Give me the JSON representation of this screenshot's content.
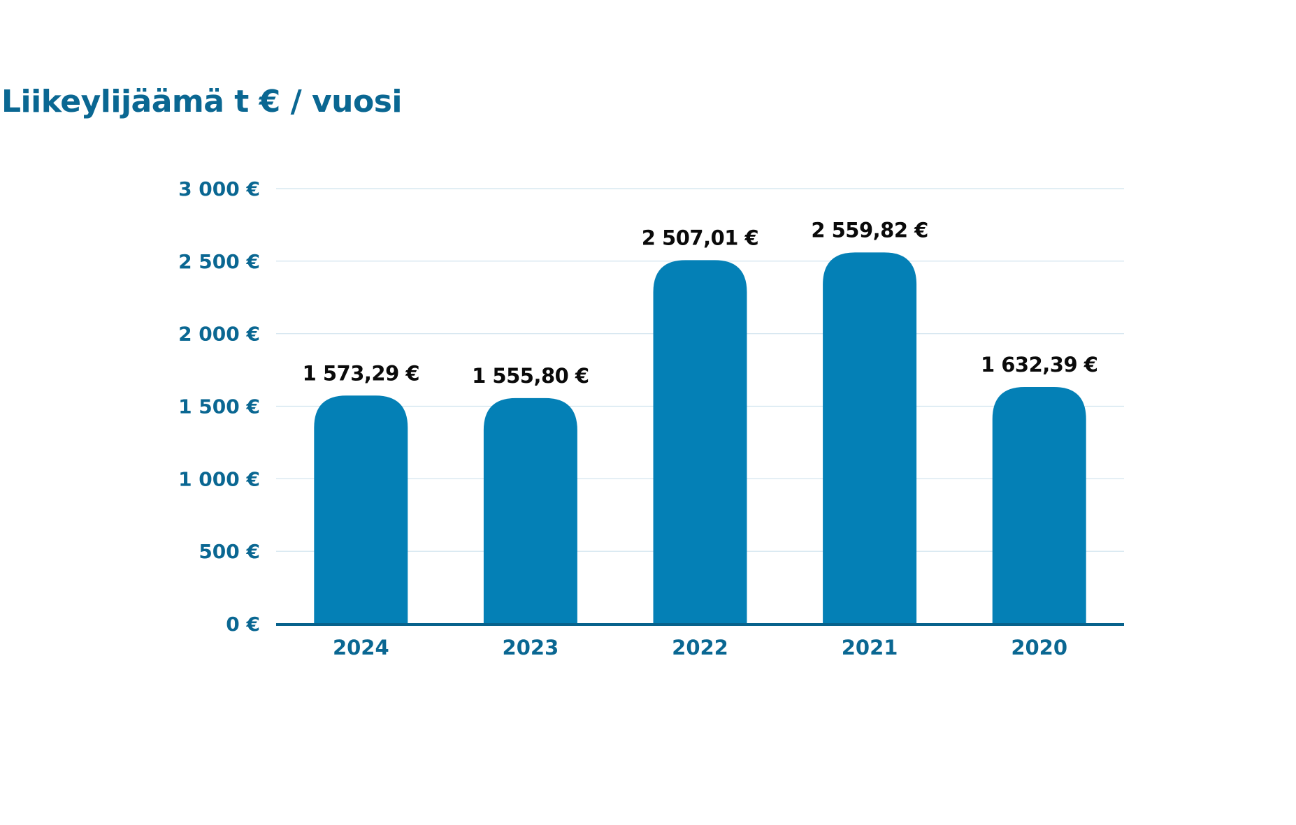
{
  "chart_data": {
    "type": "bar",
    "title": "Liikeylijäämä t € / vuosi",
    "xlabel": "",
    "ylabel": "",
    "categories": [
      "2024",
      "2023",
      "2022",
      "2021",
      "2020"
    ],
    "values": [
      1573.29,
      1555.8,
      2507.01,
      2559.82,
      1632.39
    ],
    "value_labels": [
      "1 573,29 €",
      "1 555,80 €",
      "2 507,01 €",
      "2 559,82 €",
      "1 632,39 €"
    ],
    "ylim": [
      0,
      3000
    ],
    "yticks": [
      0,
      500,
      1000,
      1500,
      2000,
      2500,
      3000
    ],
    "ytick_labels": [
      "0 €",
      "500 €",
      "1 000 €",
      "1 500 €",
      "2 000 €",
      "2 500 €",
      "3 000 €"
    ],
    "grid": true,
    "legend": "none",
    "colors": {
      "bar": "#0480b6",
      "axis": "#07628c",
      "grid": "#cfe3ee",
      "title": "#0a6792",
      "tick_text": "#0a6792",
      "value_text": "#0a0a0a"
    }
  }
}
